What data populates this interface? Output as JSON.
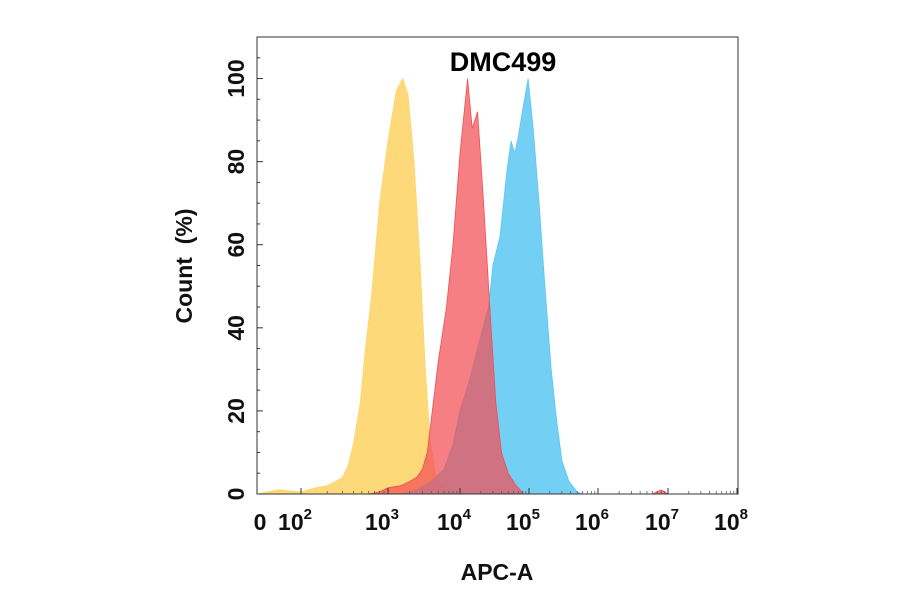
{
  "chart_data": {
    "type": "area",
    "title": "DMC499",
    "xlabel": "APC-A",
    "ylabel": "Count  (%)",
    "x_scale": "biexponential (log decades)",
    "ylim": [
      0,
      110
    ],
    "y_ticks": [
      0,
      20,
      40,
      60,
      80,
      100
    ],
    "x_ticks": [
      {
        "base": "0",
        "exp": ""
      },
      {
        "base": "10",
        "exp": "2"
      },
      {
        "base": "10",
        "exp": "3"
      },
      {
        "base": "10",
        "exp": "4"
      },
      {
        "base": "10",
        "exp": "5"
      },
      {
        "base": "10",
        "exp": "6"
      },
      {
        "base": "10",
        "exp": "7"
      },
      {
        "base": "10",
        "exp": "8"
      }
    ],
    "x_tick_values": [
      0,
      100,
      1000,
      10000,
      100000,
      1000000,
      10000000,
      100000000
    ],
    "grid": false,
    "legend": "none",
    "series": [
      {
        "color": "#fdd56a",
        "points": [
          [
            0,
            0
          ],
          [
            50,
            1
          ],
          [
            100,
            0.5
          ],
          [
            150,
            1.5
          ],
          [
            200,
            2
          ],
          [
            250,
            3
          ],
          [
            300,
            4
          ],
          [
            350,
            7
          ],
          [
            400,
            12
          ],
          [
            480,
            22
          ],
          [
            550,
            35
          ],
          [
            650,
            48
          ],
          [
            800,
            70
          ],
          [
            1000,
            85
          ],
          [
            1300,
            97
          ],
          [
            1600,
            100
          ],
          [
            1900,
            96
          ],
          [
            2300,
            80
          ],
          [
            2800,
            55
          ],
          [
            3300,
            30
          ],
          [
            3800,
            14
          ],
          [
            4500,
            5
          ],
          [
            5500,
            2
          ],
          [
            7000,
            0.5
          ],
          [
            9000,
            0
          ]
        ]
      },
      {
        "color": "#5cc7f2",
        "points": [
          [
            1500,
            0
          ],
          [
            2500,
            1
          ],
          [
            4000,
            3
          ],
          [
            6000,
            6
          ],
          [
            8000,
            12
          ],
          [
            10000,
            20
          ],
          [
            14000,
            28
          ],
          [
            20000,
            38
          ],
          [
            26000,
            45
          ],
          [
            30000,
            55
          ],
          [
            38000,
            62
          ],
          [
            48000,
            78
          ],
          [
            55000,
            85
          ],
          [
            62000,
            82
          ],
          [
            70000,
            86
          ],
          [
            80000,
            92
          ],
          [
            97000,
            100
          ],
          [
            115000,
            88
          ],
          [
            140000,
            70
          ],
          [
            170000,
            50
          ],
          [
            210000,
            30
          ],
          [
            250000,
            18
          ],
          [
            300000,
            8
          ],
          [
            380000,
            3
          ],
          [
            500000,
            0.5
          ],
          [
            600000,
            0
          ]
        ]
      },
      {
        "color": "#f24d55",
        "points": [
          [
            600,
            0
          ],
          [
            800,
            0.5
          ],
          [
            1000,
            1.5
          ],
          [
            1500,
            2
          ],
          [
            2000,
            3
          ],
          [
            2500,
            4
          ],
          [
            3000,
            6
          ],
          [
            3500,
            10
          ],
          [
            4000,
            18
          ],
          [
            5000,
            32
          ],
          [
            6500,
            45
          ],
          [
            8000,
            60
          ],
          [
            10000,
            82
          ],
          [
            12900,
            100
          ],
          [
            15000,
            88
          ],
          [
            18000,
            92
          ],
          [
            22000,
            70
          ],
          [
            27000,
            45
          ],
          [
            33000,
            22
          ],
          [
            40000,
            10
          ],
          [
            50000,
            5
          ],
          [
            65000,
            2
          ],
          [
            85000,
            0
          ],
          [
            6000000,
            0
          ],
          [
            8000000,
            1
          ],
          [
            10000000,
            0
          ]
        ]
      }
    ]
  }
}
